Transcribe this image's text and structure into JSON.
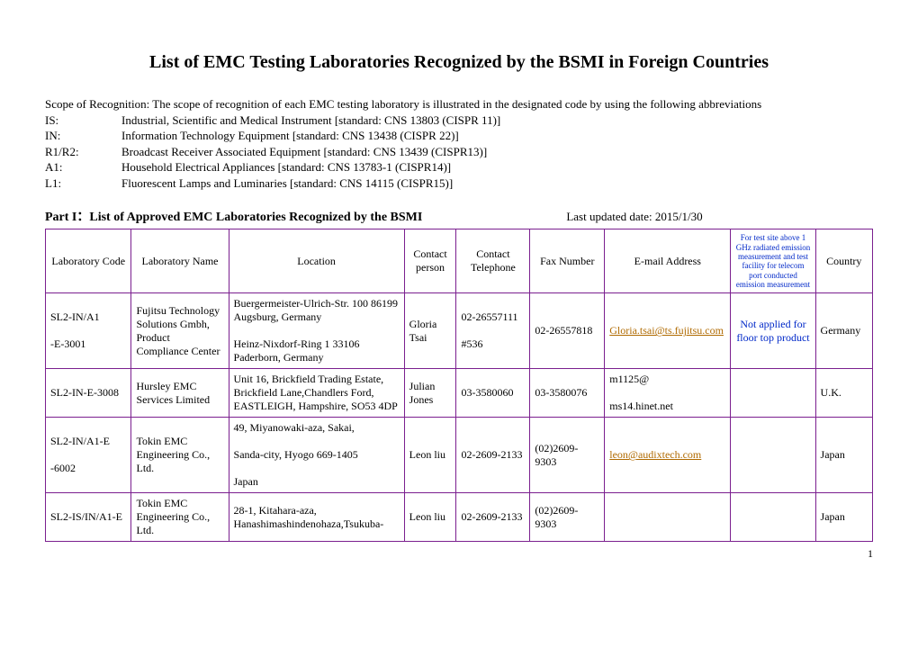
{
  "title": "List of EMC Testing Laboratories Recognized by the BSMI in Foreign Countries",
  "scope_intro": "Scope of Recognition: The scope of recognition of each EMC testing laboratory is illustrated in the designated code by using the following abbreviations",
  "abbreviations": [
    {
      "code": "IS:",
      "desc": "Industrial, Scientific and Medical Instrument [standard: CNS 13803 (CISPR 11)]"
    },
    {
      "code": "IN:",
      "desc": "Information Technology Equipment [standard: CNS 13438 (CISPR 22)]"
    },
    {
      "code": "R1/R2:",
      "desc": "Broadcast Receiver Associated Equipment [standard: CNS 13439 (CISPR13)]"
    },
    {
      "code": "A1:",
      "desc": "Household Electrical Appliances [standard: CNS 13783-1 (CISPR14)]"
    },
    {
      "code": "L1:",
      "desc": "Fluorescent Lamps and Luminaries [standard: CNS 14115 (CISPR15)]"
    }
  ],
  "part_label": "Part I：List of Approved EMC Laboratories Recognized by the BSMI",
  "updated_label": "Last updated date: 2015/1/30",
  "headers": {
    "code": "Laboratory Code",
    "name": "Laboratory Name",
    "location": "Location",
    "person": "Contact person",
    "tel": "Contact Telephone",
    "fax": "Fax Number",
    "email": "E-mail Address",
    "note": "For test site above 1 GHz radiated emission measurement and test facility for telecom port conducted emission measurement",
    "country": "Country"
  },
  "rows": [
    {
      "code": "SL2-IN/A1\n\n-E-3001",
      "name": "Fujitsu Technology Solutions Gmbh, Product Compliance Center",
      "location": "Buergermeister-Ulrich-Str. 100 86199 Augsburg, Germany\n\nHeinz-Nixdorf-Ring 1 33106 Paderborn, Germany",
      "person": "Gloria Tsai",
      "tel": "02-26557111\n\n#536",
      "fax": "02-26557818",
      "email": "Gloria.tsai@ts.fujitsu.com",
      "email_is_link": true,
      "note": "Not applied for floor top product",
      "country": "Germany"
    },
    {
      "code": "SL2-IN-E-3008",
      "name": "Hursley EMC Services Limited",
      "location": "Unit 16, Brickfield Trading Estate, Brickfield Lane,Chandlers Ford, EASTLEIGH, Hampshire, SO53 4DP",
      "person": "Julian Jones",
      "tel": "03-3580060",
      "fax": "03-3580076",
      "email": "m1125@\n\nms14.hinet.net",
      "email_is_link": false,
      "note": "",
      "country": "U.K."
    },
    {
      "code": "SL2-IN/A1-E\n\n-6002",
      "name": "Tokin EMC Engineering Co., Ltd.",
      "location": "49, Miyanowaki-aza, Sakai,\n\nSanda-city, Hyogo 669-1405\n\nJapan",
      "person": "Leon liu",
      "tel": "02-2609-2133",
      "fax": "(02)2609-9303",
      "email": "leon@audixtech.com",
      "email_is_link": true,
      "note": "",
      "country": "Japan"
    },
    {
      "code": "SL2-IS/IN/A1-E",
      "name": "Tokin EMC Engineering Co., Ltd.",
      "location": "28-1, Kitahara-aza, Hanashimashindenohaza,Tsukuba-",
      "person": "Leon liu",
      "tel": "02-2609-2133",
      "fax": "(02)2609-9303",
      "email": "",
      "email_is_link": false,
      "note": "",
      "country": "Japan"
    }
  ],
  "page_number": "1"
}
